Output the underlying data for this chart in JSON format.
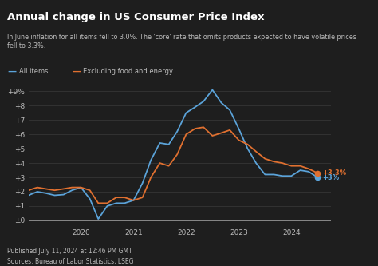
{
  "title": "Annual change in US Consumer Price Index",
  "subtitle": "In June inflation for all items fell to 3.0%. The 'core' rate that omits products expected to have volatile prices\nfell to 3.3%.",
  "background_color": "#1e1e1e",
  "text_color": "#bbbbbb",
  "title_color": "#ffffff",
  "grid_color": "#3a3a3a",
  "line1_color": "#5ba3d9",
  "line2_color": "#e07030",
  "legend1": "All items",
  "legend2": "Excluding food and energy",
  "footer_line1": "Published July 11, 2024 at 12:46 PM GMT",
  "footer_line2": "Sources: Bureau of Labor Statistics, LSEG",
  "yticks": [
    0,
    1,
    2,
    3,
    4,
    5,
    6,
    7,
    8,
    9
  ],
  "ytick_labels": [
    "±0",
    "+1",
    "+2",
    "+3",
    "+4",
    "+5",
    "+6",
    "+7",
    "+8",
    "+9%"
  ],
  "xlim_start": 2019.0,
  "xlim_end": 2024.75,
  "ylim": [
    -0.4,
    9.9
  ],
  "end_label1": "+3%",
  "end_label2": "+3.3%",
  "all_items_x": [
    2019.0,
    2019.17,
    2019.33,
    2019.5,
    2019.67,
    2019.83,
    2020.0,
    2020.17,
    2020.33,
    2020.5,
    2020.67,
    2020.83,
    2021.0,
    2021.17,
    2021.33,
    2021.5,
    2021.67,
    2021.83,
    2022.0,
    2022.17,
    2022.33,
    2022.5,
    2022.67,
    2022.83,
    2023.0,
    2023.17,
    2023.33,
    2023.5,
    2023.67,
    2023.83,
    2024.0,
    2024.17,
    2024.33,
    2024.5
  ],
  "all_items_y": [
    1.75,
    2.0,
    1.9,
    1.75,
    1.8,
    2.1,
    2.3,
    1.5,
    0.1,
    1.0,
    1.2,
    1.2,
    1.4,
    2.6,
    4.2,
    5.4,
    5.3,
    6.2,
    7.5,
    7.9,
    8.3,
    9.1,
    8.2,
    7.7,
    6.4,
    5.0,
    4.0,
    3.2,
    3.2,
    3.1,
    3.1,
    3.5,
    3.4,
    3.0
  ],
  "core_x": [
    2019.0,
    2019.17,
    2019.33,
    2019.5,
    2019.67,
    2019.83,
    2020.0,
    2020.17,
    2020.33,
    2020.5,
    2020.67,
    2020.83,
    2021.0,
    2021.17,
    2021.33,
    2021.5,
    2021.67,
    2021.83,
    2022.0,
    2022.17,
    2022.33,
    2022.5,
    2022.67,
    2022.83,
    2023.0,
    2023.17,
    2023.33,
    2023.5,
    2023.67,
    2023.83,
    2024.0,
    2024.17,
    2024.33,
    2024.5
  ],
  "core_y": [
    2.1,
    2.3,
    2.2,
    2.1,
    2.2,
    2.3,
    2.3,
    2.1,
    1.2,
    1.2,
    1.6,
    1.6,
    1.4,
    1.6,
    3.0,
    4.0,
    3.8,
    4.6,
    6.0,
    6.4,
    6.5,
    5.9,
    6.1,
    6.3,
    5.6,
    5.3,
    4.8,
    4.3,
    4.1,
    4.0,
    3.8,
    3.8,
    3.6,
    3.3
  ]
}
